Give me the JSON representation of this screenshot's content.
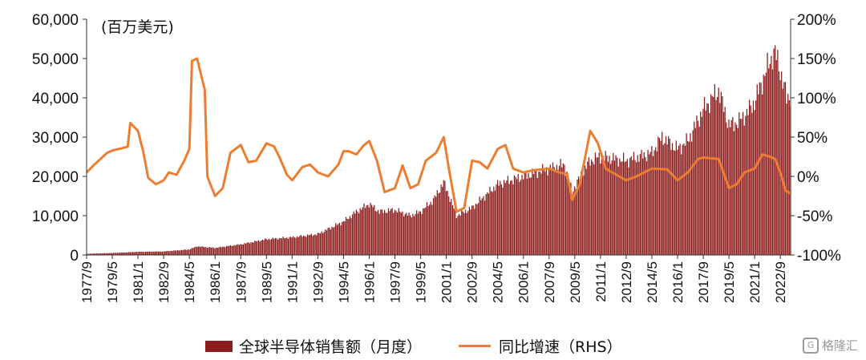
{
  "chart_data": {
    "type": "bar+line",
    "unit_label": "(百万美元)",
    "y_left": {
      "min": 0,
      "max": 60000,
      "ticks": [
        "0",
        "10,000",
        "20,000",
        "30,000",
        "40,000",
        "50,000",
        "60,000"
      ]
    },
    "y_right": {
      "min": -100,
      "max": 200,
      "ticks": [
        "-100%",
        "-50%",
        "0%",
        "50%",
        "100%",
        "150%",
        "200%"
      ]
    },
    "x_ticks": [
      "1977/9",
      "1979/5",
      "1981/1",
      "1982/9",
      "1984/5",
      "1986/1",
      "1987/9",
      "1989/5",
      "1991/1",
      "1992/9",
      "1994/5",
      "1996/1",
      "1997/9",
      "1999/5",
      "2001/1",
      "2002/9",
      "2004/5",
      "2006/1",
      "2007/9",
      "2009/5",
      "2011/1",
      "2012/9",
      "2014/5",
      "2016/1",
      "2017/9",
      "2019/5",
      "2021/1",
      "2022/9"
    ],
    "x_range": [
      "1977/9",
      "2023/5"
    ],
    "series": [
      {
        "name": "全球半导体销售额（月度）",
        "type": "bar",
        "axis": "left",
        "color": "#8b1a1a",
        "points": [
          [
            "1977/9",
            300
          ],
          [
            "1979/5",
            500
          ],
          [
            "1981/1",
            800
          ],
          [
            "1982/9",
            900
          ],
          [
            "1984/5",
            1400
          ],
          [
            "1984/11",
            2200
          ],
          [
            "1985/6",
            2000
          ],
          [
            "1986/1",
            1800
          ],
          [
            "1987/9",
            2700
          ],
          [
            "1989/5",
            4000
          ],
          [
            "1991/1",
            4500
          ],
          [
            "1992/9",
            5300
          ],
          [
            "1994/5",
            8500
          ],
          [
            "1995/3",
            11000
          ],
          [
            "1996/1",
            13000
          ],
          [
            "1996/9",
            11000
          ],
          [
            "1997/9",
            11500
          ],
          [
            "1998/9",
            10000
          ],
          [
            "1999/5",
            11000
          ],
          [
            "2000/3",
            14000
          ],
          [
            "2000/11",
            18500
          ],
          [
            "2001/1",
            17000
          ],
          [
            "2001/9",
            10000
          ],
          [
            "2002/9",
            12000
          ],
          [
            "2004/5",
            18000
          ],
          [
            "2006/1",
            20000
          ],
          [
            "2007/9",
            22000
          ],
          [
            "2008/9",
            23000
          ],
          [
            "2009/3",
            16000
          ],
          [
            "2009/11",
            21000
          ],
          [
            "2010/5",
            24000
          ],
          [
            "2011/1",
            25000
          ],
          [
            "2012/9",
            24000
          ],
          [
            "2014/5",
            26000
          ],
          [
            "2015/1",
            30000
          ],
          [
            "2016/1",
            27000
          ],
          [
            "2016/9",
            29000
          ],
          [
            "2017/9",
            37000
          ],
          [
            "2018/9",
            42000
          ],
          [
            "2019/5",
            33000
          ],
          [
            "2020/1",
            34000
          ],
          [
            "2020/9",
            37000
          ],
          [
            "2021/1",
            39000
          ],
          [
            "2021/9",
            46000
          ],
          [
            "2022/3",
            51000
          ],
          [
            "2022/5",
            51500
          ],
          [
            "2022/9",
            47000
          ],
          [
            "2023/2",
            40000
          ],
          [
            "2023/5",
            40500
          ]
        ]
      },
      {
        "name": "同比增速（RHS）",
        "type": "line",
        "axis": "right",
        "color": "#ed7d31",
        "points": [
          [
            "1977/9",
            5
          ],
          [
            "1978/3",
            15
          ],
          [
            "1979/1",
            30
          ],
          [
            "1979/5",
            33
          ],
          [
            "1980/1",
            36
          ],
          [
            "1980/5",
            38
          ],
          [
            "1980/7",
            68
          ],
          [
            "1981/1",
            58
          ],
          [
            "1981/5",
            32
          ],
          [
            "1981/9",
            -2
          ],
          [
            "1982/3",
            -10
          ],
          [
            "1982/9",
            -5
          ],
          [
            "1983/1",
            5
          ],
          [
            "1983/7",
            2
          ],
          [
            "1984/1",
            20
          ],
          [
            "1984/5",
            35
          ],
          [
            "1984/7",
            147
          ],
          [
            "1984/11",
            150
          ],
          [
            "1985/5",
            110
          ],
          [
            "1985/7",
            0
          ],
          [
            "1986/1",
            -25
          ],
          [
            "1986/7",
            -15
          ],
          [
            "1987/1",
            30
          ],
          [
            "1987/9",
            40
          ],
          [
            "1988/3",
            18
          ],
          [
            "1988/9",
            20
          ],
          [
            "1989/5",
            42
          ],
          [
            "1989/11",
            38
          ],
          [
            "1990/3",
            25
          ],
          [
            "1990/9",
            2
          ],
          [
            "1991/1",
            -5
          ],
          [
            "1991/9",
            12
          ],
          [
            "1992/3",
            15
          ],
          [
            "1992/9",
            5
          ],
          [
            "1993/5",
            0
          ],
          [
            "1994/1",
            15
          ],
          [
            "1994/5",
            32
          ],
          [
            "1994/9",
            32
          ],
          [
            "1995/3",
            28
          ],
          [
            "1995/9",
            40
          ],
          [
            "1996/1",
            45
          ],
          [
            "1996/7",
            20
          ],
          [
            "1997/1",
            -20
          ],
          [
            "1997/9",
            -15
          ],
          [
            "1998/3",
            14
          ],
          [
            "1998/9",
            -15
          ],
          [
            "1999/3",
            -10
          ],
          [
            "1999/9",
            20
          ],
          [
            "2000/5",
            30
          ],
          [
            "2000/11",
            50
          ],
          [
            "2001/3",
            10
          ],
          [
            "2001/9",
            -45
          ],
          [
            "2002/3",
            -40
          ],
          [
            "2002/9",
            20
          ],
          [
            "2003/3",
            18
          ],
          [
            "2003/9",
            10
          ],
          [
            "2004/5",
            35
          ],
          [
            "2004/11",
            40
          ],
          [
            "2005/5",
            10
          ],
          [
            "2006/1",
            5
          ],
          [
            "2006/9",
            8
          ],
          [
            "2007/9",
            10
          ],
          [
            "2008/5",
            5
          ],
          [
            "2008/11",
            3
          ],
          [
            "2009/3",
            -30
          ],
          [
            "2009/9",
            -10
          ],
          [
            "2010/5",
            58
          ],
          [
            "2010/11",
            42
          ],
          [
            "2011/5",
            10
          ],
          [
            "2012/9",
            -5
          ],
          [
            "2013/5",
            0
          ],
          [
            "2014/5",
            10
          ],
          [
            "2015/5",
            9
          ],
          [
            "2016/1",
            -5
          ],
          [
            "2016/9",
            5
          ],
          [
            "2017/5",
            22
          ],
          [
            "2017/9",
            24
          ],
          [
            "2018/9",
            22
          ],
          [
            "2019/5",
            -15
          ],
          [
            "2019/11",
            -10
          ],
          [
            "2020/5",
            5
          ],
          [
            "2021/1",
            10
          ],
          [
            "2021/7",
            28
          ],
          [
            "2022/1",
            25
          ],
          [
            "2022/5",
            22
          ],
          [
            "2022/9",
            5
          ],
          [
            "2023/1",
            -18
          ],
          [
            "2023/5",
            -22
          ]
        ]
      }
    ]
  },
  "legend": {
    "bar_label": "全球半导体销售额（月度）",
    "line_label": "同比增速（RHS）"
  },
  "watermark": {
    "text": "格隆汇"
  }
}
